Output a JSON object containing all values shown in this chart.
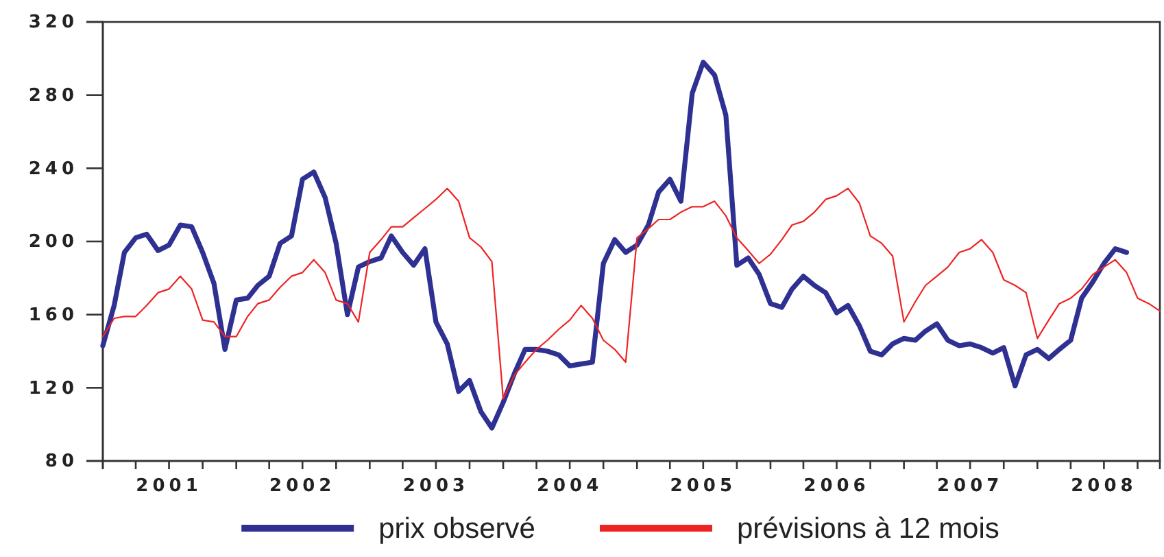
{
  "chart_data": {
    "type": "line",
    "x": [
      "2001-01",
      "2001-02",
      "2001-03",
      "2001-04",
      "2001-05",
      "2001-06",
      "2001-07",
      "2001-08",
      "2001-09",
      "2001-10",
      "2001-11",
      "2001-12",
      "2002-01",
      "2002-02",
      "2002-03",
      "2002-04",
      "2002-05",
      "2002-06",
      "2002-07",
      "2002-08",
      "2002-09",
      "2002-10",
      "2002-11",
      "2002-12",
      "2003-01",
      "2003-02",
      "2003-03",
      "2003-04",
      "2003-05",
      "2003-06",
      "2003-07",
      "2003-08",
      "2003-09",
      "2003-10",
      "2003-11",
      "2003-12",
      "2004-01",
      "2004-02",
      "2004-03",
      "2004-04",
      "2004-05",
      "2004-06",
      "2004-07",
      "2004-08",
      "2004-09",
      "2004-10",
      "2004-11",
      "2004-12",
      "2005-01",
      "2005-02",
      "2005-03",
      "2005-04",
      "2005-05",
      "2005-06",
      "2005-07",
      "2005-08",
      "2005-09",
      "2005-10",
      "2005-11",
      "2005-12",
      "2006-01",
      "2006-02",
      "2006-03",
      "2006-04",
      "2006-05",
      "2006-06",
      "2006-07",
      "2006-08",
      "2006-09",
      "2006-10",
      "2006-11",
      "2006-12",
      "2007-01",
      "2007-02",
      "2007-03",
      "2007-04",
      "2007-05",
      "2007-06",
      "2007-07",
      "2007-08",
      "2007-09",
      "2007-10",
      "2007-11",
      "2007-12",
      "2008-01",
      "2008-02",
      "2008-03",
      "2008-04",
      "2008-05",
      "2008-06",
      "2008-07",
      "2008-08",
      "2008-09",
      "2008-10",
      "2008-11",
      "2008-12"
    ],
    "series": [
      {
        "name": "prix observé",
        "color": "#2e3192",
        "values": [
          143,
          165,
          194,
          202,
          204,
          195,
          198,
          209,
          208,
          194,
          177,
          141,
          168,
          169,
          176,
          181,
          199,
          203,
          234,
          238,
          224,
          199,
          160,
          186,
          189,
          191,
          203,
          194,
          187,
          196,
          156,
          144,
          118,
          124,
          107,
          98,
          112,
          128,
          141,
          141,
          140,
          138,
          132,
          133,
          134,
          188,
          201,
          194,
          198,
          209,
          227,
          234,
          222,
          281,
          298,
          291,
          269,
          187,
          191,
          182,
          166,
          164,
          174,
          181,
          176,
          172,
          161,
          165,
          154,
          140,
          138,
          144,
          147,
          146,
          151,
          155,
          146,
          143,
          144,
          142,
          139,
          142,
          121,
          138,
          141,
          136,
          141,
          146,
          169,
          178,
          188,
          196,
          194,
          null,
          null,
          null
        ]
      },
      {
        "name": "prévisions à 12 mois",
        "color": "#ee2424",
        "values": [
          148,
          158,
          159,
          159,
          165,
          172,
          174,
          181,
          174,
          157,
          156,
          148,
          148,
          159,
          166,
          168,
          175,
          181,
          183,
          190,
          183,
          168,
          166,
          156,
          194,
          201,
          208,
          208,
          213,
          218,
          223,
          229,
          222,
          202,
          197,
          189,
          114,
          127,
          134,
          141,
          146,
          152,
          157,
          165,
          158,
          146,
          141,
          134,
          202,
          207,
          212,
          212,
          216,
          219,
          219,
          222,
          214,
          202,
          195,
          188,
          193,
          201,
          209,
          211,
          216,
          223,
          225,
          229,
          221,
          203,
          199,
          192,
          156,
          167,
          176,
          181,
          186,
          194,
          196,
          201,
          194,
          179,
          176,
          172,
          147,
          157,
          166,
          169,
          174,
          182,
          186,
          190,
          183,
          169,
          166,
          162
        ]
      }
    ],
    "xlim": [
      "2001-01",
      "2008-12"
    ],
    "xticks": [
      {
        "value": "2001-01",
        "label": null
      },
      {
        "value": "2001-04",
        "label": null
      },
      {
        "value": "2001-07",
        "label": "2001"
      },
      {
        "value": "2001-10",
        "label": null
      },
      {
        "value": "2002-01",
        "label": null
      },
      {
        "value": "2002-04",
        "label": null
      },
      {
        "value": "2002-07",
        "label": "2002"
      },
      {
        "value": "2002-10",
        "label": null
      },
      {
        "value": "2003-01",
        "label": null
      },
      {
        "value": "2003-04",
        "label": null
      },
      {
        "value": "2003-07",
        "label": "2003"
      },
      {
        "value": "2003-10",
        "label": null
      },
      {
        "value": "2004-01",
        "label": null
      },
      {
        "value": "2004-04",
        "label": null
      },
      {
        "value": "2004-07",
        "label": "2004"
      },
      {
        "value": "2004-10",
        "label": null
      },
      {
        "value": "2005-01",
        "label": null
      },
      {
        "value": "2005-04",
        "label": null
      },
      {
        "value": "2005-07",
        "label": "2005"
      },
      {
        "value": "2005-10",
        "label": null
      },
      {
        "value": "2006-01",
        "label": null
      },
      {
        "value": "2006-04",
        "label": null
      },
      {
        "value": "2006-07",
        "label": "2006"
      },
      {
        "value": "2006-10",
        "label": null
      },
      {
        "value": "2007-01",
        "label": null
      },
      {
        "value": "2007-04",
        "label": null
      },
      {
        "value": "2007-07",
        "label": "2007"
      },
      {
        "value": "2007-10",
        "label": null
      },
      {
        "value": "2008-01",
        "label": null
      },
      {
        "value": "2008-04",
        "label": null
      },
      {
        "value": "2008-07",
        "label": "2008"
      },
      {
        "value": "2008-10",
        "label": null
      }
    ],
    "ylim": [
      80,
      320
    ],
    "yticks": [
      80,
      120,
      160,
      200,
      240,
      280,
      320
    ],
    "legend": "bottom"
  }
}
